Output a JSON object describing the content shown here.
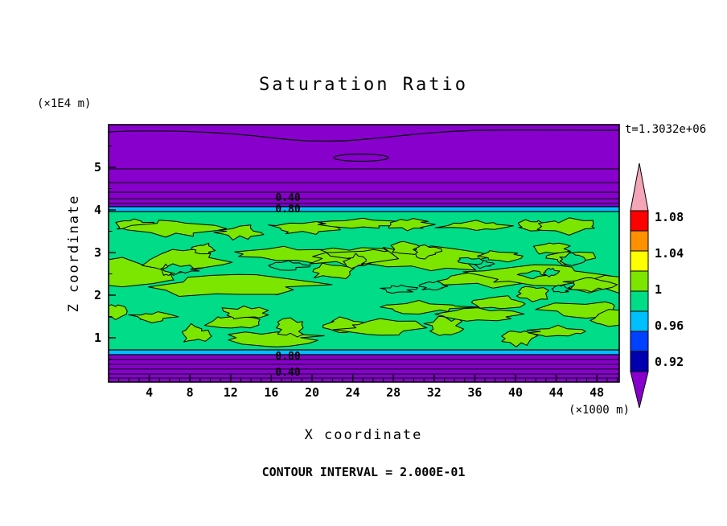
{
  "title": "Saturation Ratio",
  "time_label": "t=1.3032e+06",
  "footer": "CONTOUR INTERVAL = 2.000E-01",
  "axes": {
    "x": {
      "label": "X coordinate",
      "unit": "(×1000 m)",
      "ticks": [
        "4",
        "8",
        "12",
        "16",
        "20",
        "24",
        "28",
        "32",
        "36",
        "40",
        "44",
        "48"
      ],
      "tick_values": [
        4,
        8,
        12,
        16,
        20,
        24,
        28,
        32,
        36,
        40,
        44,
        48
      ]
    },
    "y": {
      "label": "Z coordinate",
      "unit": "(×1E4 m)",
      "ticks": [
        "1",
        "2",
        "3",
        "4",
        "5"
      ],
      "tick_values": [
        1,
        2,
        3,
        4,
        5
      ]
    }
  },
  "contour_labels": {
    "top": [
      "0.40",
      "0.80"
    ],
    "bottom": [
      "0.80",
      "0.40"
    ]
  },
  "plot_colors": {
    "purple": "#8800CC",
    "cyan": "#00BFFF",
    "green": "#00DC87",
    "chartreuse": "#7CE600",
    "line": "#000000"
  },
  "colorbar": {
    "labels": [
      "1.08",
      "1.04",
      "1",
      "0.96",
      "0.92"
    ],
    "segments": [
      {
        "name": "above-range",
        "color": "#F4A6B8",
        "shape": "arrow-up"
      },
      {
        "name": "red",
        "color": "#FF0000"
      },
      {
        "name": "orange",
        "color": "#FF9000"
      },
      {
        "name": "yellow",
        "color": "#FFFF00"
      },
      {
        "name": "chartreuse",
        "color": "#7CE600"
      },
      {
        "name": "spring-green",
        "color": "#00DC87"
      },
      {
        "name": "cyan",
        "color": "#00BFFF"
      },
      {
        "name": "blue",
        "color": "#0040FF"
      },
      {
        "name": "navy",
        "color": "#0000B0"
      },
      {
        "name": "below-range",
        "color": "#8800CC",
        "shape": "arrow-down"
      }
    ]
  },
  "chart_data": {
    "type": "heatmap",
    "title": "Saturation Ratio",
    "xlabel": "X coordinate (×1000 m)",
    "ylabel": "Z coordinate (×1E4 m)",
    "x_range": [
      0,
      50
    ],
    "z_range": [
      0,
      6
    ],
    "time": "t=1.3032e+06",
    "contour_interval": 0.2,
    "labeled_contour_values": [
      0.4,
      0.8
    ],
    "colorbar_ticks": [
      1.08,
      1.04,
      1,
      0.96,
      0.92
    ],
    "colorbar_order_top_to_bottom": [
      "above-range-pink",
      "red",
      "orange",
      "yellow",
      "chartreuse",
      "spring-green",
      "cyan",
      "blue",
      "navy",
      "below-range-purple"
    ],
    "regions": [
      {
        "zone": "upper",
        "z_from": 4.1,
        "z_to": 6.0,
        "saturation_ratio": "< 0.92, decreasing upward through labeled contours 0.80 and 0.40",
        "color_hex": "#8800CC"
      },
      {
        "zone": "upper-transition",
        "z_from": 4.0,
        "z_to": 4.1,
        "saturation_ratio": "0.92 - 0.96",
        "color_hex": "#00BFFF"
      },
      {
        "zone": "middle",
        "z_from": 0.75,
        "z_to": 4.0,
        "saturation_ratio": "0.96 - 1.00 background with irregular patches of 1.00 - 1.04",
        "color_hex": "#00DC87",
        "patch_color_hex": "#7CE600"
      },
      {
        "zone": "lower-transition",
        "z_from": 0.65,
        "z_to": 0.75,
        "saturation_ratio": "0.92 - 0.96",
        "color_hex": "#00BFFF"
      },
      {
        "zone": "lower",
        "z_from": 0.0,
        "z_to": 0.65,
        "saturation_ratio": "< 0.92, decreasing downward through labeled contours 0.80 and 0.40",
        "color_hex": "#8800CC"
      }
    ]
  }
}
